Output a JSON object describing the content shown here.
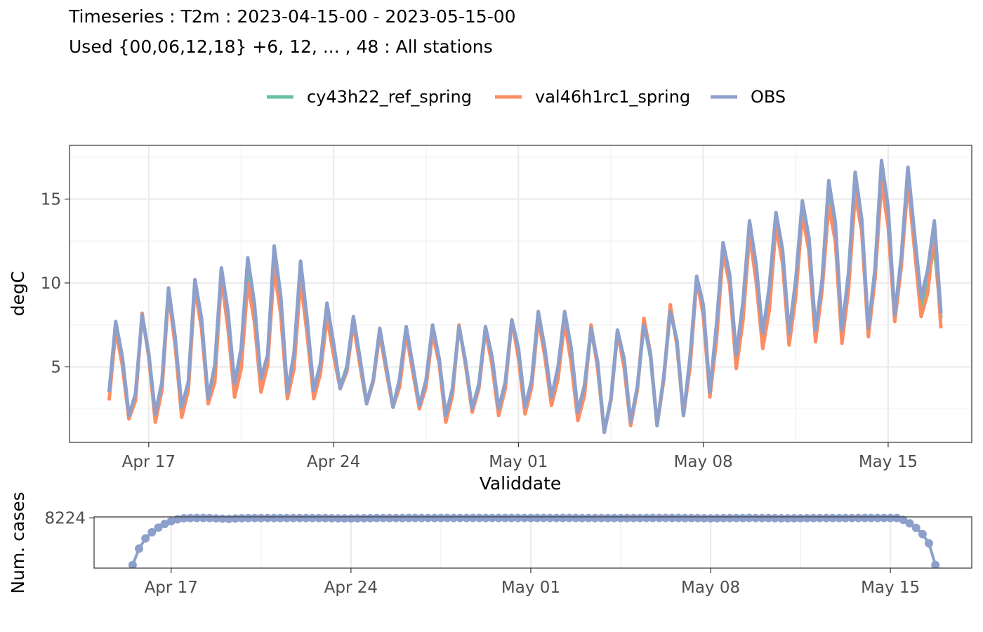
{
  "chart_data": [
    {
      "type": "line",
      "title": "Timeseries : T2m : 2023-04-15-00 - 2023-05-15-00",
      "subtitle": "Used {00,06,12,18} +6, 12, ... , 48 : All stations",
      "xlabel": "Validdate",
      "ylabel": "degC",
      "x_start": "2023-04-15 12:00",
      "x_step_hours": 6,
      "xlim": [
        "2023-04-14 00:00",
        "2023-05-18 04:00"
      ],
      "ylim": [
        0.5,
        18.2
      ],
      "x_ticks": [
        {
          "label": "Apr 17",
          "date": "2023-04-17"
        },
        {
          "label": "Apr 24",
          "date": "2023-04-24"
        },
        {
          "label": "May 01",
          "date": "2023-05-01"
        },
        {
          "label": "May 08",
          "date": "2023-05-08"
        },
        {
          "label": "May 15",
          "date": "2023-05-15"
        }
      ],
      "y_ticks": [
        5,
        10,
        15
      ],
      "grid": true,
      "legend_position": "top",
      "series": [
        {
          "name": "cy43h22_ref_spring",
          "color": "#66c2a5",
          "values": [
            3.5,
            7.3,
            5.4,
            2.1,
            3.3,
            8.0,
            5.8,
            2.0,
            3.9,
            9.5,
            6.6,
            2.4,
            4.0,
            9.9,
            7.6,
            3.1,
            4.4,
            10.6,
            7.9,
            3.5,
            5.1,
            11.1,
            8.4,
            3.9,
            5.5,
            11.8,
            8.7,
            3.4,
            5.3,
            11.0,
            7.3,
            3.5,
            4.9,
            8.5,
            6.2,
            3.8,
            5.0,
            7.9,
            5.5,
            2.9,
            4.2,
            7.2,
            5.0,
            2.6,
            4.1,
            7.2,
            5.0,
            2.7,
            4.1,
            7.4,
            5.4,
            2.0,
            3.5,
            7.4,
            5.3,
            2.5,
            4.0,
            7.3,
            5.4,
            2.4,
            4.0,
            7.7,
            5.8,
            2.5,
            4.1,
            8.1,
            5.9,
            3.0,
            4.8,
            8.1,
            5.8,
            2.1,
            3.6,
            7.2,
            5.1,
            1.2,
            3.0,
            7.0,
            5.4,
            1.7,
            3.6,
            7.6,
            5.6,
            1.6,
            4.2,
            8.4,
            6.6,
            2.2,
            5.2,
            10.3,
            8.4,
            3.5,
            7.3,
            12.1,
            10.2,
            5.2,
            8.2,
            13.1,
            10.7,
            6.5,
            9.1,
            13.9,
            11.7,
            6.6,
            9.7,
            14.7,
            12.5,
            6.9,
            10.1,
            15.4,
            13.1,
            6.8,
            10.0,
            15.9,
            13.5,
            7.1,
            10.4,
            16.8,
            13.9,
            8.0,
            11.3,
            16.3,
            12.3,
            8.4,
            10.1,
            12.2,
            7.9
          ]
        },
        {
          "name": "val46h1rc1_spring",
          "color": "#fc8d62",
          "values": [
            3.0,
            7.2,
            5.1,
            1.9,
            3.0,
            8.2,
            5.6,
            1.7,
            3.6,
            9.4,
            6.3,
            2.0,
            3.6,
            9.7,
            7.3,
            2.8,
            4.1,
            10.3,
            7.3,
            3.2,
            4.9,
            10.0,
            7.7,
            3.5,
            5.1,
            10.9,
            8.1,
            3.1,
            4.9,
            10.2,
            6.9,
            3.1,
            4.6,
            8.0,
            5.7,
            3.7,
            4.7,
            7.6,
            5.1,
            2.8,
            4.1,
            7.0,
            4.7,
            2.6,
            3.8,
            7.0,
            4.7,
            2.5,
            3.8,
            7.0,
            5.2,
            1.7,
            3.3,
            7.5,
            5.1,
            2.3,
            3.7,
            7.2,
            5.1,
            2.1,
            3.7,
            7.8,
            5.5,
            2.2,
            3.8,
            7.9,
            5.6,
            2.7,
            4.3,
            7.7,
            5.2,
            1.8,
            3.3,
            7.5,
            4.9,
            1.1,
            3.0,
            7.1,
            5.0,
            1.5,
            3.6,
            7.9,
            5.8,
            1.5,
            4.2,
            8.7,
            6.3,
            2.1,
            5.0,
            10.2,
            8.1,
            3.2,
            6.6,
            11.8,
            9.9,
            4.9,
            7.7,
            12.9,
            10.1,
            6.1,
            8.4,
            13.4,
            11.2,
            6.3,
            9.2,
            14.1,
            11.9,
            6.5,
            9.6,
            14.6,
            12.5,
            6.4,
            9.6,
            15.3,
            13.1,
            6.8,
            10.2,
            16.0,
            13.4,
            7.7,
            11.0,
            16.0,
            12.0,
            8.0,
            9.4,
            13.2,
            7.3
          ]
        },
        {
          "name": "OBS",
          "color": "#8da0cb",
          "values": [
            3.5,
            7.7,
            5.6,
            2.1,
            3.4,
            8.1,
            5.8,
            2.2,
            4.1,
            9.7,
            6.8,
            2.6,
            4.1,
            10.2,
            7.9,
            3.1,
            5.1,
            10.9,
            8.3,
            4.0,
            6.1,
            11.5,
            8.8,
            4.3,
            5.7,
            12.2,
            9.2,
            3.5,
            5.8,
            11.3,
            7.8,
            3.6,
            5.2,
            8.8,
            6.4,
            3.7,
            4.9,
            8.0,
            5.5,
            2.8,
            4.2,
            7.3,
            5.0,
            2.6,
            4.3,
            7.4,
            5.1,
            2.7,
            4.2,
            7.5,
            5.5,
            2.1,
            3.7,
            7.4,
            5.3,
            2.5,
            3.9,
            7.4,
            5.6,
            2.5,
            4.1,
            7.8,
            6.1,
            2.6,
            4.2,
            8.3,
            6.1,
            3.2,
            5.0,
            8.3,
            6.1,
            2.3,
            3.9,
            7.3,
            5.3,
            1.1,
            3.1,
            7.2,
            5.5,
            1.7,
            3.8,
            7.5,
            5.8,
            1.5,
            4.4,
            8.3,
            6.6,
            2.1,
            5.6,
            10.4,
            8.7,
            3.5,
            7.5,
            12.4,
            10.5,
            5.7,
            8.8,
            13.7,
            11.1,
            7.0,
            9.8,
            14.2,
            12.0,
            7.0,
            10.2,
            14.9,
            12.7,
            7.2,
            10.2,
            16.1,
            13.6,
            7.2,
            10.6,
            16.6,
            13.8,
            7.3,
            10.8,
            17.3,
            14.5,
            8.1,
            11.6,
            16.9,
            12.9,
            9.1,
            10.8,
            13.7,
            8.2
          ]
        }
      ]
    },
    {
      "type": "line",
      "ylabel": "Num. cases",
      "y_ticks": [
        8224
      ],
      "ylim": [
        6600,
        8260
      ],
      "series": [
        {
          "name": "OBS",
          "color": "#8da0cb",
          "values": [
            6700,
            7230,
            7560,
            7760,
            7910,
            8030,
            8120,
            8180,
            8215,
            8220,
            8224,
            8224,
            8218,
            8210,
            8202,
            8195,
            8205,
            8215,
            8220,
            8221,
            8222,
            8222,
            8222,
            8222,
            8222,
            8221,
            8221,
            8221,
            8220,
            8220,
            8218,
            8214,
            8212,
            8210,
            8210,
            8212,
            8214,
            8216,
            8218,
            8220,
            8221,
            8222,
            8222,
            8223,
            8223,
            8223,
            8223,
            8223,
            8223,
            8223,
            8223,
            8223,
            8223,
            8223,
            8223,
            8223,
            8223,
            8223,
            8223,
            8223,
            8223,
            8223,
            8223,
            8223,
            8223,
            8223,
            8223,
            8223,
            8223,
            8223,
            8222,
            8222,
            8221,
            8220,
            8220,
            8219,
            8219,
            8220,
            8221,
            8222,
            8223,
            8223,
            8223,
            8223,
            8223,
            8223,
            8222,
            8220,
            8218,
            8215,
            8212,
            8214,
            8216,
            8218,
            8220,
            8222,
            8223,
            8222,
            8220,
            8218,
            8216,
            8214,
            8213,
            8214,
            8215,
            8217,
            8219,
            8221,
            8222,
            8222,
            8222,
            8222,
            8222,
            8223,
            8223,
            8223,
            8223,
            8223,
            8223,
            8223,
            8160,
            8050,
            7900,
            7700,
            7400,
            6700
          ]
        }
      ]
    }
  ]
}
